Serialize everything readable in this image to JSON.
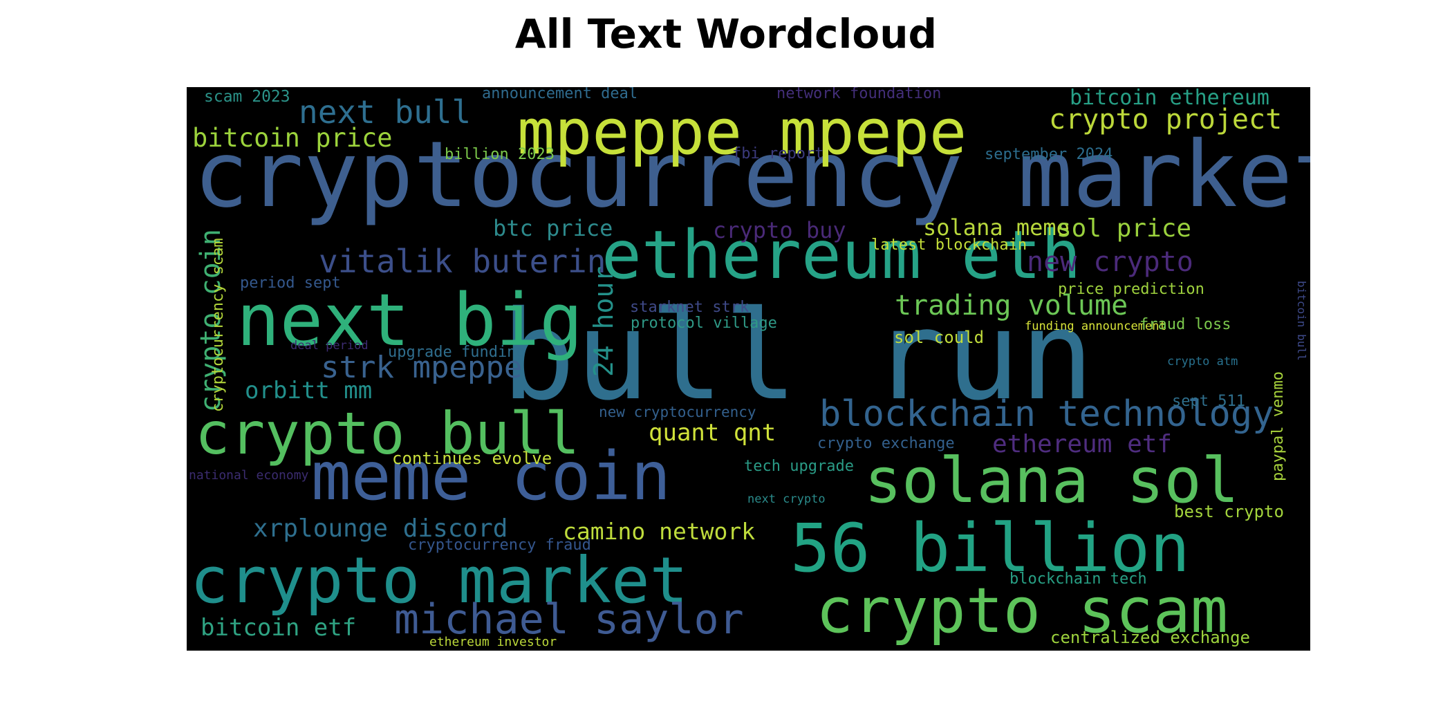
{
  "chart_data": {
    "type": "wordcloud",
    "title": "All Text Wordcloud",
    "background": "#000000",
    "words": [
      {
        "text": "cryptocurrency market",
        "color": "#3e5f8f"
      },
      {
        "text": "bull run",
        "color": "#2f6f8e"
      },
      {
        "text": "mpeppe mpepe",
        "color": "#c6e03a"
      },
      {
        "text": "ethereum eth",
        "color": "#26a387"
      },
      {
        "text": "next big",
        "color": "#2fb17b"
      },
      {
        "text": "solana sol",
        "color": "#58c05f"
      },
      {
        "text": "meme coin",
        "color": "#3e5f98"
      },
      {
        "text": "crypto bull",
        "color": "#54bf60"
      },
      {
        "text": "56 billion",
        "color": "#22a384"
      },
      {
        "text": "crypto market",
        "color": "#1f8f8c"
      },
      {
        "text": "crypto scam",
        "color": "#5dc35a"
      },
      {
        "text": "michael saylor",
        "color": "#3f5b93"
      },
      {
        "text": "blockchain technology",
        "color": "#33648f"
      },
      {
        "text": "next bull",
        "color": "#2e6f90"
      },
      {
        "text": "crypto project",
        "color": "#bcd83a"
      },
      {
        "text": "bitcoin price",
        "color": "#9cd33c"
      },
      {
        "text": "bitcoin ethereum",
        "color": "#27a086"
      },
      {
        "text": "vitalik buterin",
        "color": "#3c4f8a"
      },
      {
        "text": "trading volume",
        "color": "#6cc756"
      },
      {
        "text": "strk mpeppe",
        "color": "#39628f"
      },
      {
        "text": "crypto coin",
        "color": "#3fb072"
      },
      {
        "text": "24 hour",
        "color": "#24918a"
      },
      {
        "text": "orbitt mm",
        "color": "#22908c"
      },
      {
        "text": "xrplounge discord",
        "color": "#2e6f8e"
      },
      {
        "text": "camino network",
        "color": "#bfdc3c"
      },
      {
        "text": "quant qnt",
        "color": "#d0e23a"
      },
      {
        "text": "btc price",
        "color": "#2d8a8c"
      },
      {
        "text": "crypto buy",
        "color": "#4a2a78"
      },
      {
        "text": "solana meme",
        "color": "#b8d83c"
      },
      {
        "text": "sol price",
        "color": "#9ad13d"
      },
      {
        "text": "new crypto",
        "color": "#4b2a7a"
      },
      {
        "text": "ethereum etf",
        "color": "#4f2d7f"
      },
      {
        "text": "bitcoin etf",
        "color": "#2fa383"
      },
      {
        "text": "cryptocurrency scam",
        "color": "#b3d63a"
      },
      {
        "text": "scam 2023",
        "color": "#2b9389"
      },
      {
        "text": "announcement deal",
        "color": "#2f6b8e"
      },
      {
        "text": "network foundation",
        "color": "#432e79"
      },
      {
        "text": "billion 2023",
        "color": "#7cc94b"
      },
      {
        "text": "fbi report",
        "color": "#3b3a7c"
      },
      {
        "text": "september 2024",
        "color": "#2c6d8e"
      },
      {
        "text": "latest blockchain",
        "color": "#c5df3a"
      },
      {
        "text": "period sept",
        "color": "#34588d"
      },
      {
        "text": "starknet strk",
        "color": "#3f4a88"
      },
      {
        "text": "protocol village",
        "color": "#2f9a87"
      },
      {
        "text": "price prediction",
        "color": "#9fd23e"
      },
      {
        "text": "funding announcement",
        "color": "#d9e53a"
      },
      {
        "text": "fraud loss",
        "color": "#7bc84c"
      },
      {
        "text": "sol could",
        "color": "#c1dd3b"
      },
      {
        "text": "deal period",
        "color": "#3d2c72"
      },
      {
        "text": "upgrade funding",
        "color": "#2f6e8e"
      },
      {
        "text": "crypto atm",
        "color": "#28718e"
      },
      {
        "text": "sept 511",
        "color": "#2f6f8d"
      },
      {
        "text": "new cryptocurrency",
        "color": "#33608d"
      },
      {
        "text": "crypto exchange",
        "color": "#33608d"
      },
      {
        "text": "continues evolve",
        "color": "#c9df3c"
      },
      {
        "text": "tech upgrade",
        "color": "#2a9b86"
      },
      {
        "text": "national economy",
        "color": "#3b2c70"
      },
      {
        "text": "next crypto",
        "color": "#2a8b8b"
      },
      {
        "text": "best crypto",
        "color": "#a3d43c"
      },
      {
        "text": "cryptocurrency fraud",
        "color": "#34568d"
      },
      {
        "text": "blockchain tech",
        "color": "#28a085"
      },
      {
        "text": "centralized exchange",
        "color": "#9dd33d"
      },
      {
        "text": "ethereum investor",
        "color": "#bcd93a"
      },
      {
        "text": "paypal venmo",
        "color": "#a8d33c"
      },
      {
        "text": "bitcoin bull",
        "color": "#3e4a8a"
      }
    ]
  }
}
